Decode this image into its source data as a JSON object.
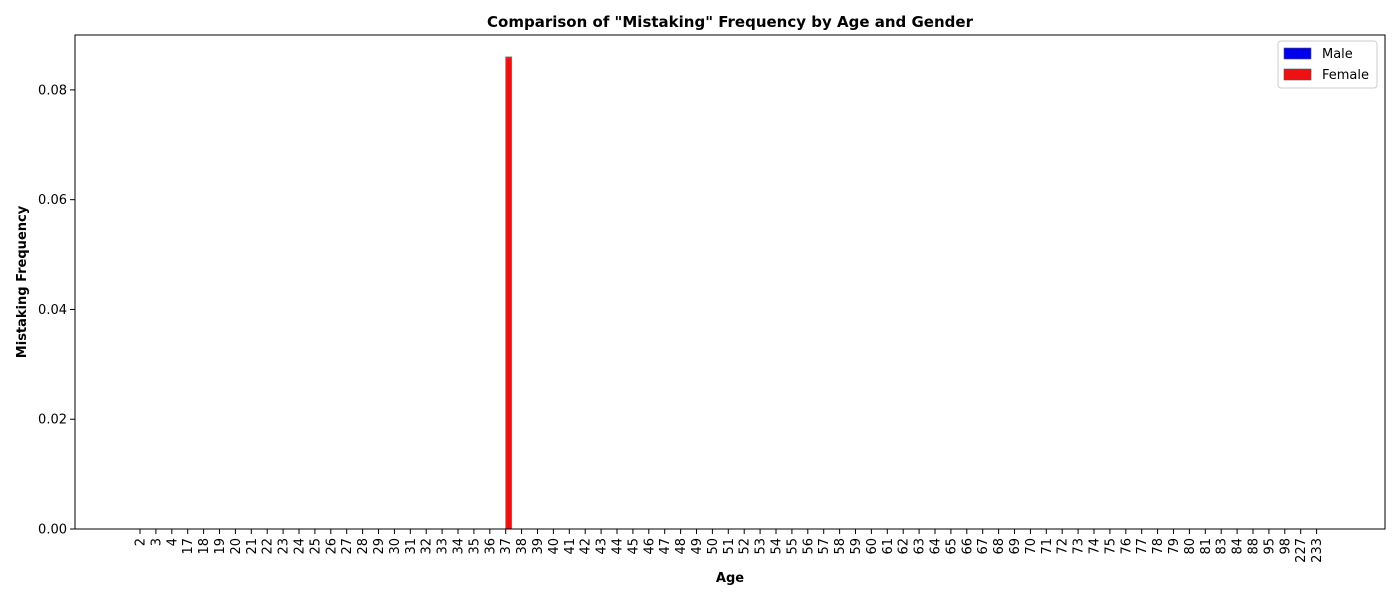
{
  "chart_data": {
    "type": "bar",
    "title": "Comparison of \"Mistaking\" Frequency by Age and Gender",
    "xlabel": "Age",
    "ylabel": "Mistaking Frequency",
    "ylim": [
      0,
      0.09
    ],
    "yticks": [
      "0.00",
      "0.02",
      "0.04",
      "0.06",
      "0.08"
    ],
    "legend_position": "top-right",
    "categories": [
      "2",
      "3",
      "4",
      "17",
      "18",
      "19",
      "20",
      "21",
      "22",
      "23",
      "24",
      "25",
      "26",
      "27",
      "28",
      "29",
      "30",
      "31",
      "32",
      "33",
      "34",
      "35",
      "36",
      "37",
      "38",
      "39",
      "40",
      "41",
      "42",
      "43",
      "44",
      "45",
      "46",
      "47",
      "48",
      "49",
      "50",
      "51",
      "52",
      "53",
      "54",
      "55",
      "56",
      "57",
      "58",
      "59",
      "60",
      "61",
      "62",
      "63",
      "64",
      "65",
      "66",
      "67",
      "68",
      "69",
      "70",
      "71",
      "72",
      "73",
      "74",
      "75",
      "76",
      "77",
      "78",
      "79",
      "80",
      "81",
      "83",
      "84",
      "88",
      "95",
      "98",
      "227",
      "233"
    ],
    "series": [
      {
        "name": "Male",
        "color": "#0000ee",
        "values": [
          0,
          0,
          0,
          0,
          0,
          0,
          0,
          0,
          0,
          0,
          0,
          0,
          0,
          0,
          0,
          0,
          0,
          0,
          0,
          0,
          0,
          0,
          0,
          0,
          0,
          0,
          0,
          0,
          0,
          0,
          0,
          0,
          0,
          0,
          0,
          0,
          0,
          0,
          0,
          0,
          0,
          0,
          0,
          0,
          0,
          0,
          0,
          0,
          0,
          0,
          0,
          0,
          0,
          0,
          0,
          0,
          0,
          0,
          0,
          0,
          0,
          0,
          0,
          0,
          0,
          0,
          0,
          0,
          0,
          0,
          0,
          0,
          0,
          0,
          0
        ]
      },
      {
        "name": "Female",
        "color": "#ee1111",
        "values": [
          0,
          0,
          0,
          0,
          0,
          0,
          0,
          0,
          0,
          0,
          0,
          0,
          0,
          0,
          0,
          0,
          0,
          0,
          0,
          0,
          0,
          0,
          0,
          0.086,
          0,
          0,
          0,
          0,
          0,
          0,
          0,
          0,
          0,
          0,
          0,
          0,
          0,
          0,
          0,
          0,
          0,
          0,
          0,
          0,
          0,
          0,
          0,
          0,
          0,
          0,
          0,
          0,
          0,
          0,
          0,
          0,
          0,
          0,
          0,
          0,
          0,
          0,
          0,
          0,
          0,
          0,
          0,
          0,
          0,
          0,
          0,
          0,
          0,
          0,
          0
        ]
      }
    ]
  }
}
